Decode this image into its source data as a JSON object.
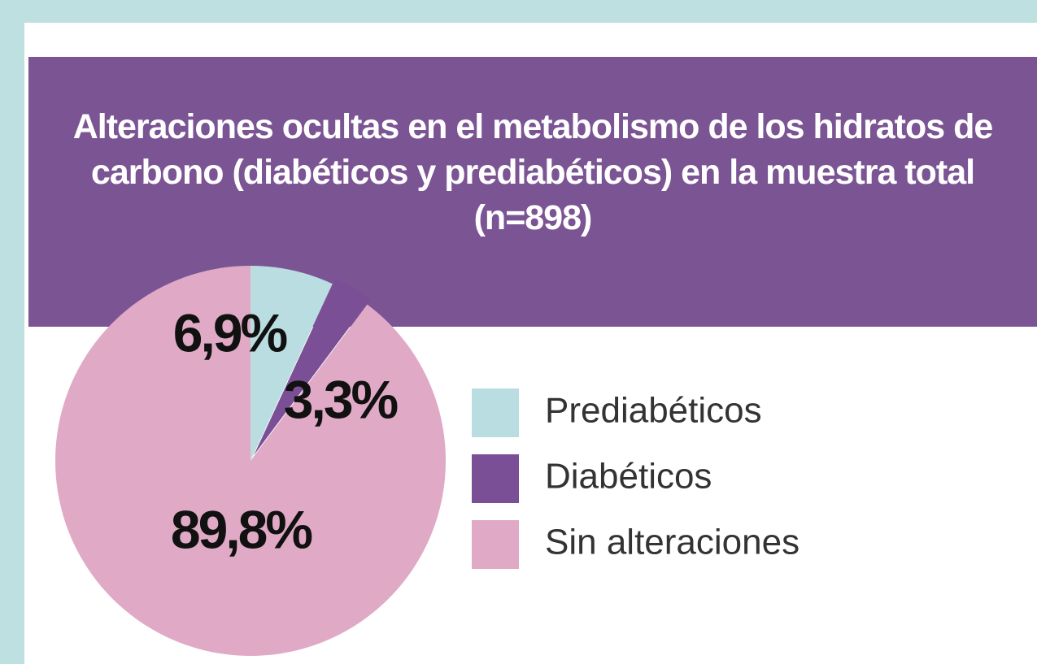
{
  "chart_data": {
    "type": "pie",
    "title": "Alteraciones ocultas en el metabolismo de los hidratos de carbono (diabéticos y prediabéticos) en la muestra total (n=898)",
    "categories": [
      "Prediabéticos",
      "Diabéticos",
      "Sin alteraciones"
    ],
    "values": [
      6.9,
      3.3,
      89.8
    ],
    "value_labels": [
      "6,9%",
      "3,3%",
      "89,8%"
    ],
    "colors": [
      "#b9dde0",
      "#7b4f96",
      "#e0aac6"
    ]
  }
}
